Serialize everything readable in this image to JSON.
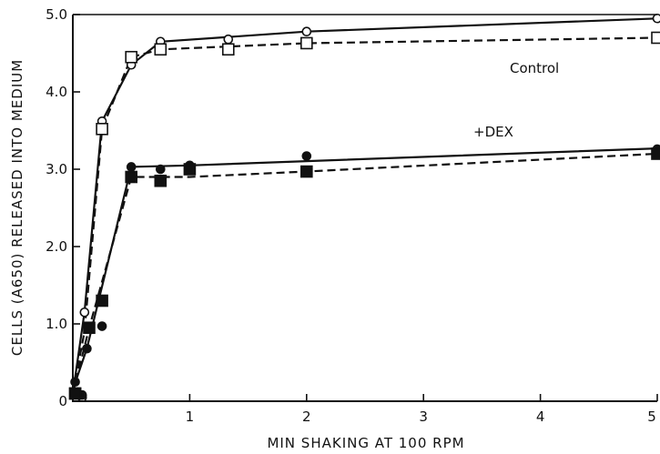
{
  "chart_data": {
    "type": "line",
    "xlabel": "MIN SHAKING AT 100 RPM",
    "ylabel": "CELLS (A650) RELEASED INTO MEDIUM",
    "xlim": [
      0,
      5
    ],
    "ylim": [
      0,
      5
    ],
    "xticks": [
      1,
      2,
      3,
      4,
      5
    ],
    "xtick_labels": [
      "1",
      "2",
      "3",
      "4",
      "5"
    ],
    "yticks": [
      0,
      1,
      2,
      3,
      4,
      5
    ],
    "ytick_labels": [
      "0",
      "1.0",
      "2.0",
      "3.0",
      "4.0",
      "5.0"
    ],
    "grid": false,
    "annotations": [
      "Control",
      "+DEX"
    ],
    "series": [
      {
        "marker": "open-circle",
        "line": "solid",
        "points": [
          [
            0.02,
            0.1
          ],
          [
            0.08,
            0.05
          ],
          [
            0.1,
            1.15
          ],
          [
            0.25,
            3.62
          ],
          [
            0.5,
            4.35
          ],
          [
            0.75,
            4.65
          ],
          [
            1.33,
            4.68
          ],
          [
            2.0,
            4.78
          ],
          [
            5.0,
            4.95
          ]
        ],
        "curve": [
          [
            0.0,
            0.1
          ],
          [
            0.1,
            1.15
          ],
          [
            0.25,
            3.62
          ],
          [
            0.5,
            4.35
          ],
          [
            0.75,
            4.65
          ],
          [
            2.0,
            4.78
          ],
          [
            5.0,
            4.95
          ]
        ]
      },
      {
        "marker": "open-square",
        "line": "dashed",
        "points": [
          [
            0.02,
            0.1
          ],
          [
            0.25,
            3.52
          ],
          [
            0.5,
            4.45
          ],
          [
            0.75,
            4.55
          ],
          [
            1.33,
            4.55
          ],
          [
            2.0,
            4.63
          ],
          [
            5.0,
            4.7
          ]
        ],
        "curve": [
          [
            0.0,
            0.1
          ],
          [
            0.1,
            0.9
          ],
          [
            0.25,
            3.52
          ],
          [
            0.5,
            4.45
          ],
          [
            0.75,
            4.55
          ],
          [
            2.0,
            4.63
          ],
          [
            5.0,
            4.7
          ]
        ]
      },
      {
        "marker": "filled-circle",
        "line": "solid",
        "points": [
          [
            0.02,
            0.25
          ],
          [
            0.08,
            0.08
          ],
          [
            0.12,
            0.68
          ],
          [
            0.25,
            0.97
          ],
          [
            0.5,
            3.03
          ],
          [
            0.75,
            3.0
          ],
          [
            1.0,
            3.05
          ],
          [
            2.0,
            3.17
          ],
          [
            5.0,
            3.26
          ]
        ],
        "curve": [
          [
            0.0,
            0.15
          ],
          [
            0.12,
            0.68
          ],
          [
            0.5,
            3.03
          ],
          [
            1.0,
            3.05
          ],
          [
            5.0,
            3.27
          ]
        ]
      },
      {
        "marker": "filled-square",
        "line": "dashed",
        "points": [
          [
            0.02,
            0.1
          ],
          [
            0.14,
            0.95
          ],
          [
            0.25,
            1.3
          ],
          [
            0.5,
            2.9
          ],
          [
            0.75,
            2.85
          ],
          [
            1.0,
            3.0
          ],
          [
            2.0,
            2.97
          ],
          [
            5.0,
            3.2
          ]
        ],
        "curve": [
          [
            0.0,
            0.1
          ],
          [
            0.14,
            0.95
          ],
          [
            0.5,
            2.9
          ],
          [
            1.0,
            2.9
          ],
          [
            2.0,
            2.97
          ],
          [
            5.0,
            3.2
          ]
        ]
      }
    ]
  }
}
